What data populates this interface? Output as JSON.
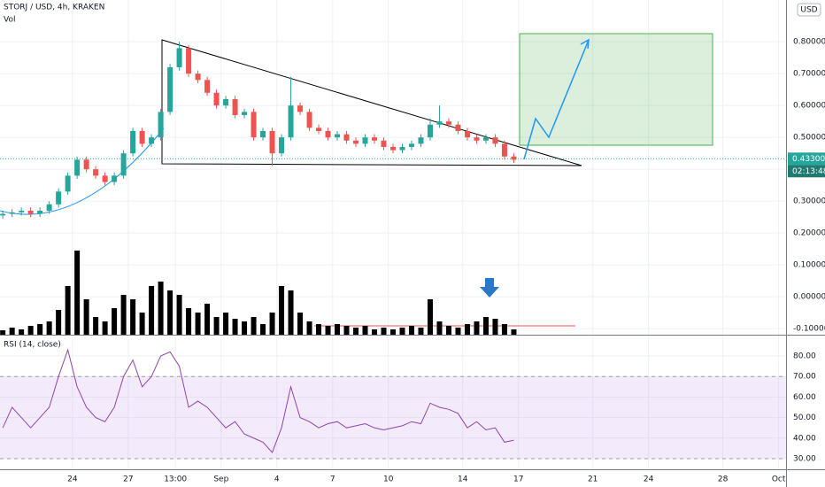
{
  "chart_data": [
    {
      "type": "candlestick",
      "title": "STORJ / USD, 4h, KRAKEN",
      "currency": "USD",
      "x": [
        -3.75,
        -3.25,
        -2.75,
        -2.25,
        -1.75,
        -1.25,
        -0.75,
        -0.25,
        0.25,
        0.75,
        1.25,
        1.75,
        2.25,
        2.75,
        3.25,
        3.75,
        4.25,
        4.75,
        5.25,
        5.75,
        6.25,
        6.75,
        7.25,
        7.75,
        8.25,
        8.75,
        9.25,
        9.75,
        10.25,
        10.75,
        11.25,
        11.75,
        12.25,
        12.75,
        13.25,
        13.75,
        14.25,
        14.75,
        15.25,
        15.75,
        16.25,
        16.75,
        17.25,
        17.75,
        18.25,
        18.75,
        19.25,
        19.75,
        20.25,
        20.75,
        21.25,
        21.75,
        22.25,
        22.75,
        23.25,
        23.75
      ],
      "open": [
        0.255,
        0.26,
        0.265,
        0.27,
        0.26,
        0.27,
        0.29,
        0.33,
        0.38,
        0.43,
        0.4,
        0.38,
        0.36,
        0.38,
        0.45,
        0.52,
        0.48,
        0.5,
        0.58,
        0.72,
        0.78,
        0.7,
        0.68,
        0.64,
        0.6,
        0.62,
        0.57,
        0.58,
        0.5,
        0.52,
        0.45,
        0.5,
        0.6,
        0.58,
        0.53,
        0.52,
        0.5,
        0.51,
        0.49,
        0.48,
        0.5,
        0.49,
        0.47,
        0.46,
        0.47,
        0.48,
        0.5,
        0.54,
        0.55,
        0.54,
        0.52,
        0.5,
        0.49,
        0.5,
        0.48,
        0.44
      ],
      "high": [
        0.27,
        0.275,
        0.28,
        0.28,
        0.28,
        0.3,
        0.34,
        0.39,
        0.44,
        0.44,
        0.41,
        0.39,
        0.39,
        0.46,
        0.53,
        0.53,
        0.51,
        0.59,
        0.73,
        0.8,
        0.79,
        0.71,
        0.69,
        0.65,
        0.63,
        0.63,
        0.59,
        0.59,
        0.53,
        0.53,
        0.51,
        0.69,
        0.61,
        0.59,
        0.54,
        0.53,
        0.52,
        0.52,
        0.5,
        0.51,
        0.51,
        0.5,
        0.48,
        0.48,
        0.49,
        0.51,
        0.56,
        0.6,
        0.56,
        0.55,
        0.53,
        0.51,
        0.51,
        0.51,
        0.49,
        0.45
      ],
      "low": [
        0.245,
        0.25,
        0.255,
        0.25,
        0.25,
        0.26,
        0.28,
        0.32,
        0.37,
        0.39,
        0.37,
        0.35,
        0.35,
        0.37,
        0.44,
        0.47,
        0.47,
        0.49,
        0.57,
        0.71,
        0.69,
        0.67,
        0.63,
        0.59,
        0.59,
        0.56,
        0.56,
        0.49,
        0.49,
        0.41,
        0.44,
        0.49,
        0.57,
        0.52,
        0.51,
        0.49,
        0.49,
        0.48,
        0.47,
        0.47,
        0.48,
        0.46,
        0.45,
        0.45,
        0.46,
        0.47,
        0.49,
        0.53,
        0.53,
        0.51,
        0.49,
        0.48,
        0.48,
        0.47,
        0.43,
        0.42
      ],
      "close": [
        0.26,
        0.265,
        0.27,
        0.26,
        0.27,
        0.29,
        0.33,
        0.38,
        0.43,
        0.4,
        0.38,
        0.36,
        0.38,
        0.45,
        0.52,
        0.48,
        0.5,
        0.58,
        0.72,
        0.78,
        0.7,
        0.68,
        0.64,
        0.6,
        0.62,
        0.57,
        0.58,
        0.5,
        0.52,
        0.45,
        0.5,
        0.6,
        0.58,
        0.53,
        0.52,
        0.5,
        0.51,
        0.49,
        0.48,
        0.5,
        0.49,
        0.47,
        0.46,
        0.47,
        0.48,
        0.5,
        0.54,
        0.55,
        0.54,
        0.52,
        0.5,
        0.49,
        0.5,
        0.48,
        0.44,
        0.43
      ],
      "up_color": "#26a69a",
      "down_color": "#ef5350",
      "xlim": [
        -3.9,
        38.4
      ],
      "xticks": [
        {
          "value": 0,
          "label": "24"
        },
        {
          "value": 3,
          "label": "27"
        },
        {
          "value": 5.54,
          "label": "13:00"
        },
        {
          "value": 8,
          "label": "Sep"
        },
        {
          "value": 11,
          "label": "4"
        },
        {
          "value": 14,
          "label": "7"
        },
        {
          "value": 17,
          "label": "10"
        },
        {
          "value": 21,
          "label": "14"
        },
        {
          "value": 24,
          "label": "17"
        },
        {
          "value": 28,
          "label": "21"
        },
        {
          "value": 31,
          "label": "24"
        },
        {
          "value": 35,
          "label": "28"
        },
        {
          "value": 38,
          "label": "Oct"
        }
      ],
      "ylim": [
        -0.119,
        0.931
      ],
      "yticks": [
        {
          "value": 0.8,
          "label": "0.80000"
        },
        {
          "value": 0.7,
          "label": "0.70000"
        },
        {
          "value": 0.6,
          "label": "0.60000"
        },
        {
          "value": 0.5,
          "label": "0.50000"
        },
        {
          "value": 0.4,
          "label": "0.40000"
        },
        {
          "value": 0.3,
          "label": "0.30000"
        },
        {
          "value": 0.2,
          "label": "0.20000"
        },
        {
          "value": 0.1,
          "label": "0.10000"
        },
        {
          "value": 0,
          "label": "0.00000"
        },
        {
          "value": -0.1,
          "label": "-0.10000"
        }
      ],
      "grid": true,
      "last_price": {
        "value": 0.433,
        "label": "0.43300"
      },
      "countdown": "02:13:48"
    },
    {
      "type": "bar",
      "title": "Vol",
      "color": "#000000",
      "ylim": [
        0,
        100
      ],
      "values": [
        5,
        8,
        6,
        10,
        12,
        15,
        28,
        55,
        95,
        40,
        20,
        15,
        30,
        45,
        40,
        25,
        55,
        60,
        50,
        45,
        30,
        25,
        35,
        20,
        25,
        18,
        15,
        20,
        12,
        25,
        55,
        50,
        25,
        15,
        12,
        10,
        12,
        10,
        8,
        10,
        6,
        8,
        6,
        8,
        10,
        8,
        40,
        15,
        10,
        8,
        12,
        15,
        20,
        18,
        12,
        6
      ]
    },
    {
      "type": "line",
      "title": "RSI (14, close)",
      "color": "#8e44ad",
      "ylim": [
        24.8,
        89.5
      ],
      "yticks": [
        {
          "value": 80,
          "label": "80.00"
        },
        {
          "value": 70,
          "label": "70.00"
        },
        {
          "value": 60,
          "label": "60.00"
        },
        {
          "value": 50,
          "label": "50.00"
        },
        {
          "value": 40,
          "label": "40.00"
        },
        {
          "value": 30,
          "label": "30.00"
        }
      ],
      "band": {
        "from": 30,
        "to": 70,
        "color": "rgba(155,89,230,0.12)"
      },
      "values": [
        45,
        55,
        50,
        45,
        50,
        55,
        70,
        83,
        65,
        55,
        50,
        48,
        55,
        70,
        78,
        65,
        70,
        80,
        82,
        75,
        55,
        58,
        55,
        50,
        45,
        48,
        42,
        40,
        38,
        33,
        45,
        65,
        50,
        48,
        45,
        47,
        48,
        45,
        46,
        47,
        45,
        44,
        45,
        46,
        48,
        47,
        57,
        55,
        54,
        52,
        45,
        48,
        44,
        45,
        38,
        39
      ]
    }
  ]
}
